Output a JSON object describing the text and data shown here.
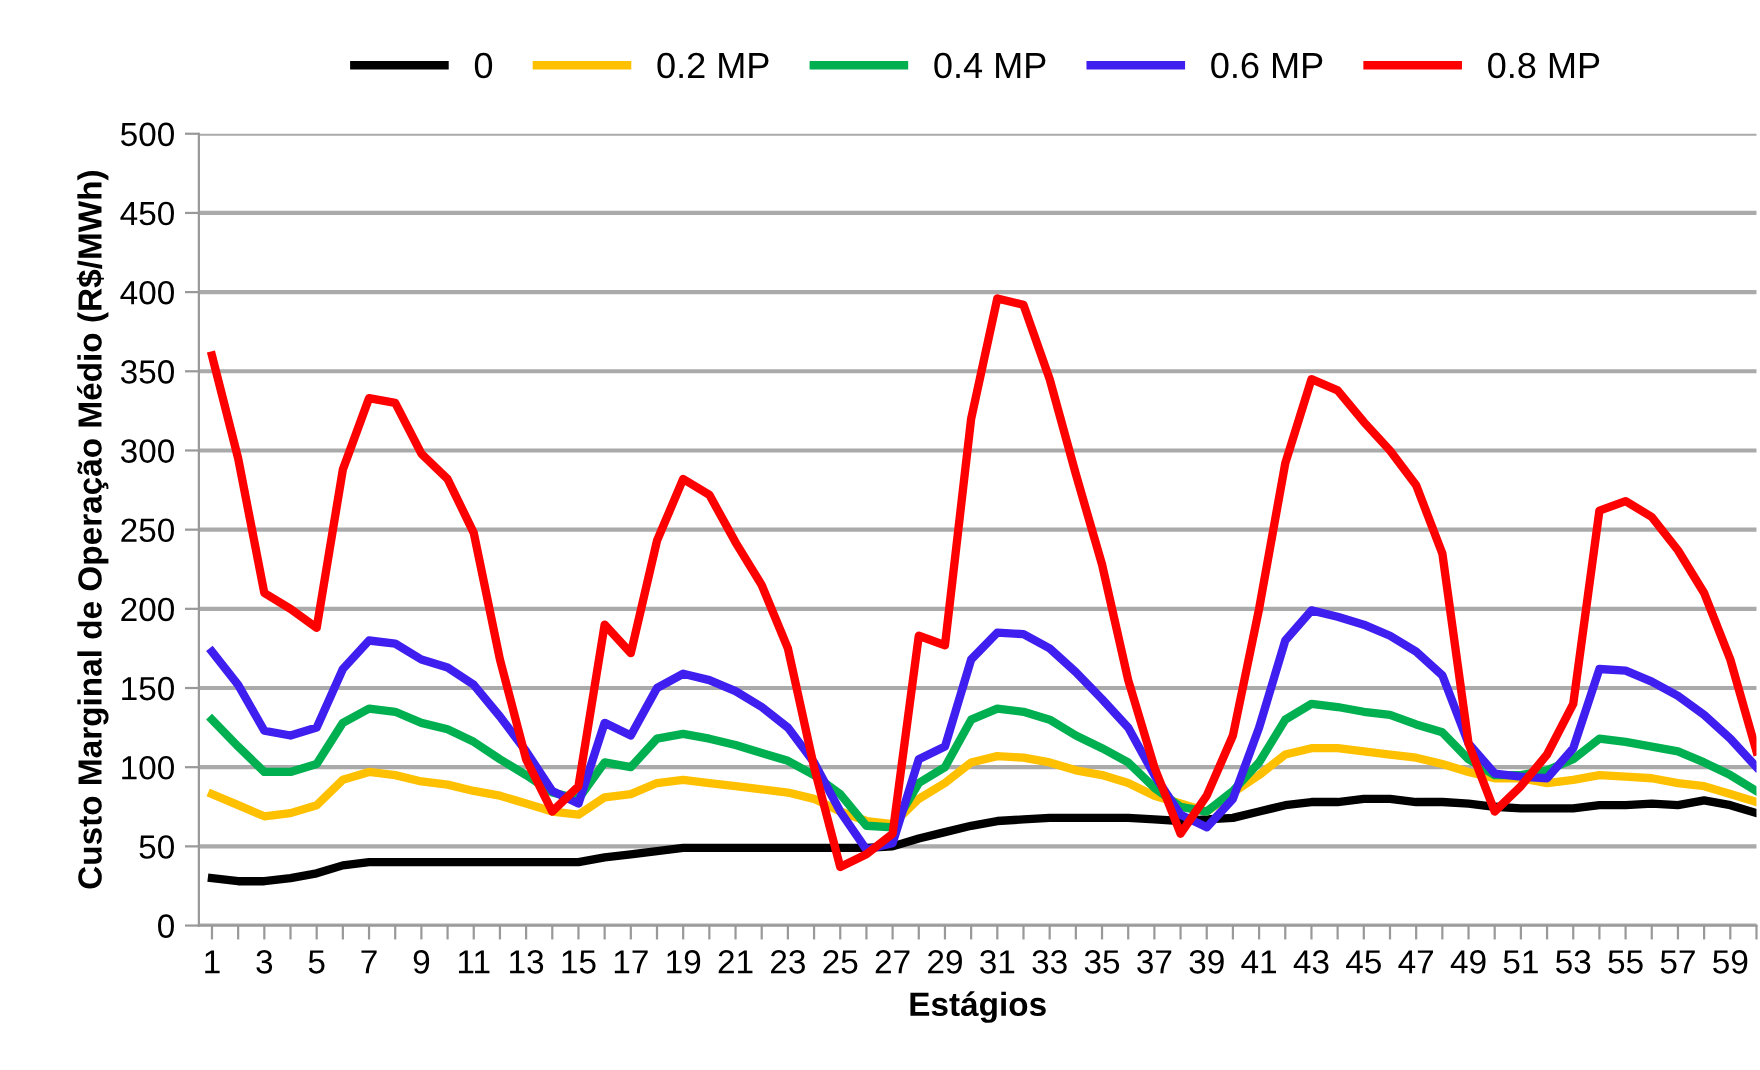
{
  "chart_data": {
    "type": "line",
    "xlabel": "Estágios",
    "ylabel": "Custo Marginal de Operação Médio (R$/MWh)",
    "x": [
      1,
      2,
      3,
      4,
      5,
      6,
      7,
      8,
      9,
      10,
      11,
      12,
      13,
      14,
      15,
      16,
      17,
      18,
      19,
      20,
      21,
      22,
      23,
      24,
      25,
      26,
      27,
      28,
      29,
      30,
      31,
      32,
      33,
      34,
      35,
      36,
      37,
      38,
      39,
      40,
      41,
      42,
      43,
      44,
      45,
      46,
      47,
      48,
      49,
      50,
      51,
      52,
      53,
      54,
      55,
      56,
      57,
      58,
      59,
      60
    ],
    "series": [
      {
        "name": "0",
        "color": "#000000",
        "values": [
          30,
          28,
          28,
          30,
          33,
          38,
          40,
          40,
          40,
          40,
          40,
          40,
          40,
          40,
          40,
          43,
          45,
          47,
          49,
          49,
          49,
          49,
          49,
          49,
          49,
          49,
          50,
          55,
          59,
          63,
          66,
          67,
          68,
          68,
          68,
          68,
          67,
          66,
          67,
          68,
          72,
          76,
          78,
          78,
          80,
          80,
          78,
          78,
          77,
          75,
          74,
          74,
          74,
          76,
          76,
          77,
          76,
          79,
          76,
          71
        ]
      },
      {
        "name": "0.2 MP",
        "color": "#ffc000",
        "values": [
          83,
          76,
          69,
          71,
          76,
          92,
          97,
          95,
          91,
          89,
          85,
          82,
          77,
          72,
          70,
          81,
          83,
          90,
          92,
          90,
          88,
          86,
          84,
          80,
          72,
          66,
          64,
          80,
          90,
          103,
          107,
          106,
          103,
          98,
          95,
          90,
          82,
          77,
          72,
          84,
          95,
          108,
          112,
          112,
          110,
          108,
          106,
          102,
          97,
          93,
          93,
          90,
          92,
          95,
          94,
          93,
          90,
          88,
          83,
          78
        ]
      },
      {
        "name": "0.4 MP",
        "color": "#00b050",
        "values": [
          130,
          113,
          97,
          97,
          102,
          128,
          137,
          135,
          128,
          124,
          116,
          105,
          95,
          84,
          80,
          103,
          100,
          118,
          121,
          118,
          114,
          109,
          104,
          95,
          83,
          63,
          62,
          90,
          100,
          130,
          137,
          135,
          130,
          120,
          112,
          103,
          87,
          75,
          72,
          85,
          103,
          130,
          140,
          138,
          135,
          133,
          127,
          122,
          105,
          95,
          95,
          98,
          105,
          118,
          116,
          113,
          110,
          103,
          95,
          85
        ]
      },
      {
        "name": "0.6 MP",
        "color": "#3f1ff0",
        "values": [
          173,
          152,
          123,
          120,
          125,
          162,
          180,
          178,
          168,
          163,
          152,
          132,
          110,
          85,
          77,
          128,
          120,
          150,
          159,
          155,
          148,
          138,
          125,
          103,
          72,
          48,
          52,
          105,
          113,
          168,
          185,
          184,
          175,
          160,
          143,
          125,
          95,
          70,
          62,
          80,
          125,
          180,
          199,
          195,
          190,
          183,
          173,
          158,
          115,
          96,
          94,
          93,
          112,
          162,
          161,
          154,
          145,
          133,
          118,
          100
        ]
      },
      {
        "name": "0.8 MP",
        "color": "#ff0000",
        "values": [
          360,
          295,
          210,
          200,
          188,
          288,
          333,
          330,
          298,
          282,
          248,
          168,
          105,
          72,
          88,
          190,
          172,
          243,
          282,
          272,
          242,
          215,
          175,
          100,
          37,
          45,
          58,
          183,
          177,
          320,
          396,
          392,
          345,
          285,
          228,
          155,
          100,
          58,
          82,
          120,
          200,
          292,
          345,
          338,
          318,
          300,
          278,
          235,
          115,
          72,
          88,
          108,
          140,
          262,
          268,
          258,
          237,
          210,
          168,
          110
        ]
      }
    ],
    "xlim": [
      0.5,
      60
    ],
    "xticks": [
      1,
      {
        "value": 2,
        "label": null
      },
      3,
      {
        "value": 4,
        "label": null
      },
      5,
      {
        "value": 6,
        "label": null
      },
      7,
      {
        "value": 8,
        "label": null
      },
      9,
      {
        "value": 10,
        "label": null
      },
      11,
      {
        "value": 12,
        "label": null
      },
      13,
      {
        "value": 14,
        "label": null
      },
      15,
      {
        "value": 16,
        "label": null
      },
      17,
      {
        "value": 18,
        "label": null
      },
      19,
      {
        "value": 20,
        "label": null
      },
      21,
      {
        "value": 22,
        "label": null
      },
      23,
      {
        "value": 24,
        "label": null
      },
      25,
      {
        "value": 26,
        "label": null
      },
      27,
      {
        "value": 28,
        "label": null
      },
      29,
      {
        "value": 30,
        "label": null
      },
      31,
      {
        "value": 32,
        "label": null
      },
      33,
      {
        "value": 34,
        "label": null
      },
      35,
      {
        "value": 36,
        "label": null
      },
      37,
      {
        "value": 38,
        "label": null
      },
      39,
      {
        "value": 40,
        "label": null
      },
      41,
      {
        "value": 42,
        "label": null
      },
      43,
      {
        "value": 44,
        "label": null
      },
      45,
      {
        "value": 46,
        "label": null
      },
      47,
      {
        "value": 48,
        "label": null
      },
      49,
      {
        "value": 50,
        "label": null
      },
      51,
      {
        "value": 52,
        "label": null
      },
      53,
      {
        "value": 54,
        "label": null
      },
      55,
      {
        "value": 56,
        "label": null
      },
      57,
      {
        "value": 58,
        "label": null
      },
      59,
      {
        "value": 60,
        "label": null
      }
    ],
    "ylim": [
      0,
      500
    ],
    "yticks": [
      0,
      50,
      100,
      150,
      200,
      250,
      300,
      350,
      400,
      450,
      500
    ],
    "grid": "y",
    "legend": "top",
    "marker": "none",
    "line_style": "solid"
  }
}
